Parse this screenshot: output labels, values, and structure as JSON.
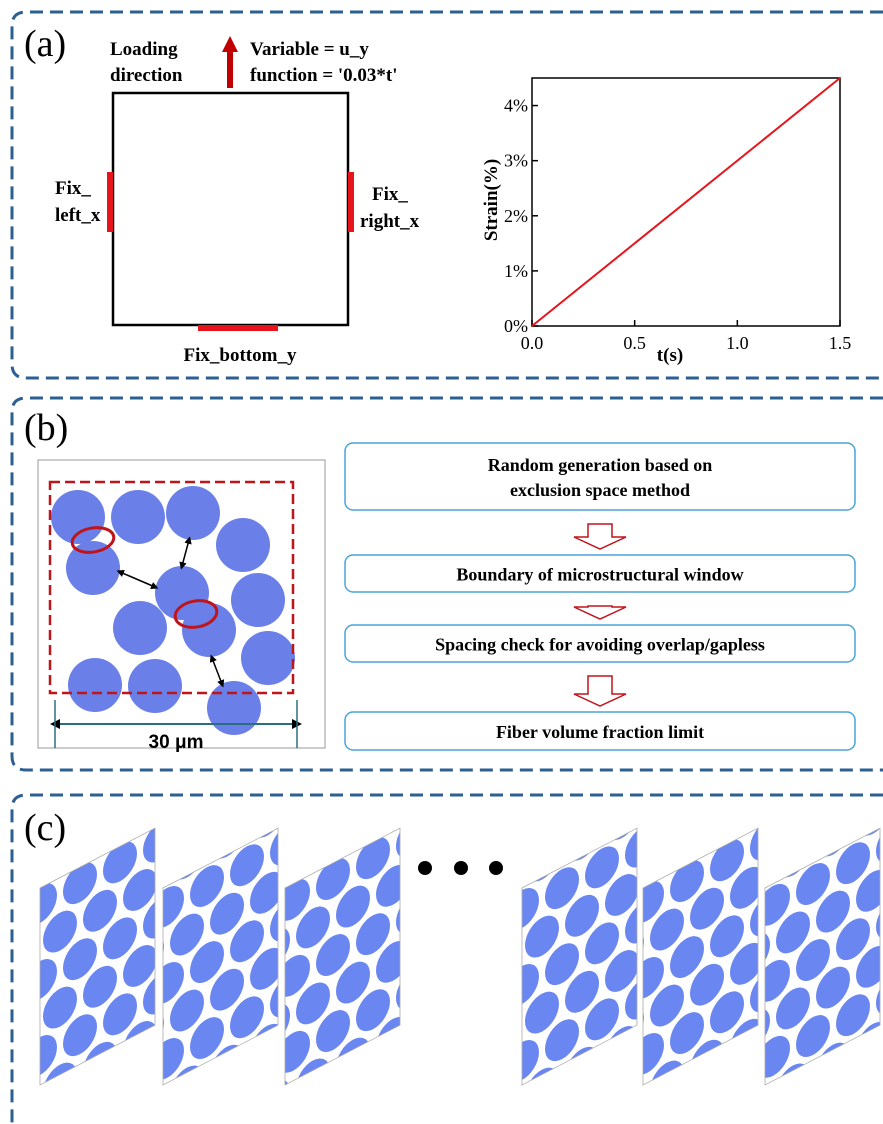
{
  "panel_a": {
    "label": "(a)",
    "loading": [
      "Loading",
      "direction"
    ],
    "variable": "Variable = u_y",
    "function": "function = '0.03*t'",
    "fix_left": [
      "Fix_",
      "left_x"
    ],
    "fix_right": [
      "Fix_",
      "right_x"
    ],
    "fix_bottom": "Fix_bottom_y",
    "chart": {
      "type": "line",
      "ylabel": "Strain(%)",
      "xlabel": "t(s)",
      "color": "#e8141b",
      "x": [
        0,
        1.5
      ],
      "values": [
        0,
        4.5
      ],
      "xlim": [
        0,
        1.5
      ],
      "ylim": [
        0,
        4.5
      ],
      "xticks": [
        {
          "value": 0,
          "label": "0.0"
        },
        {
          "value": 0.5,
          "label": "0.5"
        },
        {
          "value": 1,
          "label": "1.0"
        },
        {
          "value": 1.5,
          "label": "1.5"
        }
      ],
      "yticks": [
        {
          "value": 0,
          "label": "0%"
        },
        {
          "value": 1,
          "label": "1%"
        },
        {
          "value": 2,
          "label": "2%"
        },
        {
          "value": 3,
          "label": "3%"
        },
        {
          "value": 4,
          "label": "4%"
        }
      ]
    }
  },
  "panel_b": {
    "label": "(b)",
    "scale": "30 μm",
    "steps": [
      [
        "Random generation based on",
        "exclusion space method"
      ],
      [
        "Boundary of microstructural  window"
      ],
      [
        "Spacing check for avoiding overlap/gapless"
      ],
      [
        "Fiber volume fraction limit"
      ]
    ]
  },
  "panel_c": {
    "label": "(c)"
  }
}
